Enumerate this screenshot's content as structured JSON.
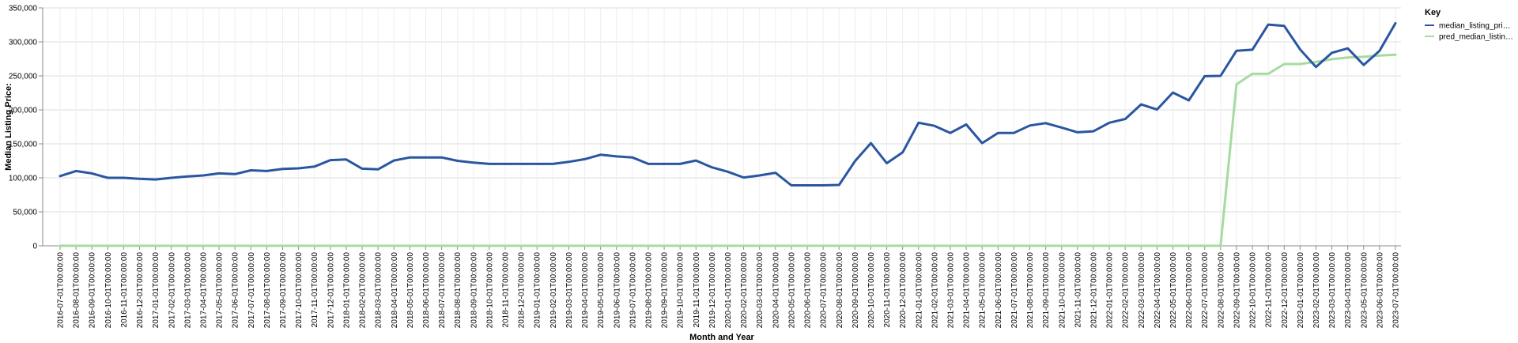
{
  "chart_data": {
    "type": "line",
    "title": "",
    "xlabel": "Month and Year",
    "ylabel": "Median Listing Price:",
    "ylim": [
      0,
      350000
    ],
    "y_ticks": [
      "0",
      "50,000",
      "100,000",
      "150,000",
      "200,000",
      "250,000",
      "300,000",
      "350,000"
    ],
    "y_tick_values": [
      0,
      50000,
      100000,
      150000,
      200000,
      250000,
      300000,
      350000
    ],
    "grid": true,
    "legend": {
      "title": "Key",
      "position": "top-right",
      "entries": [
        "median_listing_pri…",
        "pred_median_listin…"
      ]
    },
    "x": [
      "2016-07-01T00:00:00",
      "2016-08-01T00:00:00",
      "2016-09-01T00:00:00",
      "2016-10-01T00:00:00",
      "2016-11-01T00:00:00",
      "2016-12-01T00:00:00",
      "2017-01-01T00:00:00",
      "2017-02-01T00:00:00",
      "2017-03-01T00:00:00",
      "2017-04-01T00:00:00",
      "2017-05-01T00:00:00",
      "2017-06-01T00:00:00",
      "2017-07-01T00:00:00",
      "2017-08-01T00:00:00",
      "2017-09-01T00:00:00",
      "2017-10-01T00:00:00",
      "2017-11-01T00:00:00",
      "2017-12-01T00:00:00",
      "2018-01-01T00:00:00",
      "2018-02-01T00:00:00",
      "2018-03-01T00:00:00",
      "2018-04-01T00:00:00",
      "2018-05-01T00:00:00",
      "2018-06-01T00:00:00",
      "2018-07-01T00:00:00",
      "2018-08-01T00:00:00",
      "2018-09-01T00:00:00",
      "2018-10-01T00:00:00",
      "2018-11-01T00:00:00",
      "2018-12-01T00:00:00",
      "2019-01-01T00:00:00",
      "2019-02-01T00:00:00",
      "2019-03-01T00:00:00",
      "2019-04-01T00:00:00",
      "2019-05-01T00:00:00",
      "2019-06-01T00:00:00",
      "2019-07-01T00:00:00",
      "2019-08-01T00:00:00",
      "2019-09-01T00:00:00",
      "2019-10-01T00:00:00",
      "2019-11-01T00:00:00",
      "2019-12-01T00:00:00",
      "2020-01-01T00:00:00",
      "2020-02-01T00:00:00",
      "2020-03-01T00:00:00",
      "2020-04-01T00:00:00",
      "2020-05-01T00:00:00",
      "2020-06-01T00:00:00",
      "2020-07-01T00:00:00",
      "2020-08-01T00:00:00",
      "2020-09-01T00:00:00",
      "2020-10-01T00:00:00",
      "2020-11-01T00:00:00",
      "2020-12-01T00:00:00",
      "2021-01-01T00:00:00",
      "2021-02-01T00:00:00",
      "2021-03-01T00:00:00",
      "2021-04-01T00:00:00",
      "2021-05-01T00:00:00",
      "2021-06-01T00:00:00",
      "2021-07-01T00:00:00",
      "2021-08-01T00:00:00",
      "2021-09-01T00:00:00",
      "2021-10-01T00:00:00",
      "2021-11-01T00:00:00",
      "2021-12-01T00:00:00",
      "2022-01-01T00:00:00",
      "2022-02-01T00:00:00",
      "2022-03-01T00:00:00",
      "2022-04-01T00:00:00",
      "2022-05-01T00:00:00",
      "2022-06-01T00:00:00",
      "2022-07-01T00:00:00",
      "2022-08-01T00:00:00",
      "2022-09-01T00:00:00",
      "2022-10-01T00:00:00",
      "2022-11-01T00:00:00",
      "2022-12-01T00:00:00",
      "2023-01-01T00:00:00",
      "2023-02-01T00:00:00",
      "2023-03-01T00:00:00",
      "2023-04-01T00:00:00",
      "2023-05-01T00:00:00",
      "2023-06-01T00:00:00",
      "2023-07-01T00:00:00"
    ],
    "series": [
      {
        "name": "median_listing_pri…",
        "color": "#2a56a0",
        "values": [
          102500,
          110000,
          106500,
          100000,
          100000,
          98500,
          97500,
          100000,
          102000,
          103500,
          106500,
          105500,
          111000,
          110000,
          113000,
          114000,
          116500,
          126000,
          127000,
          113500,
          112500,
          125500,
          130000,
          130000,
          130000,
          125000,
          122500,
          120500,
          120500,
          120500,
          120500,
          120500,
          123500,
          127500,
          134000,
          131500,
          130000,
          120500,
          120500,
          120500,
          125500,
          115500,
          109000,
          100500,
          103500,
          107500,
          89000,
          89000,
          89000,
          89500,
          124500,
          151000,
          121500,
          137500,
          181000,
          176500,
          166000,
          178500,
          151000,
          166000,
          166000,
          177000,
          180500,
          174000,
          167000,
          168500,
          181000,
          186500,
          208000,
          200500,
          225500,
          214000,
          249500,
          250000,
          287000,
          288500,
          325500,
          323500,
          289000,
          263000,
          284000,
          290500,
          266000,
          287000,
          327500
        ]
      },
      {
        "name": "pred_median_listin…",
        "color": "#a6dba0",
        "values": [
          0,
          0,
          0,
          0,
          0,
          0,
          0,
          0,
          0,
          0,
          0,
          0,
          0,
          0,
          0,
          0,
          0,
          0,
          0,
          0,
          0,
          0,
          0,
          0,
          0,
          0,
          0,
          0,
          0,
          0,
          0,
          0,
          0,
          0,
          0,
          0,
          0,
          0,
          0,
          0,
          0,
          0,
          0,
          0,
          0,
          0,
          0,
          0,
          0,
          0,
          0,
          0,
          0,
          0,
          0,
          0,
          0,
          0,
          0,
          0,
          0,
          0,
          0,
          0,
          0,
          0,
          0,
          0,
          0,
          0,
          0,
          0,
          0,
          0,
          237500,
          253000,
          253000,
          267500,
          267500,
          270500,
          274500,
          277000,
          278000,
          280000,
          281000
        ]
      }
    ]
  }
}
